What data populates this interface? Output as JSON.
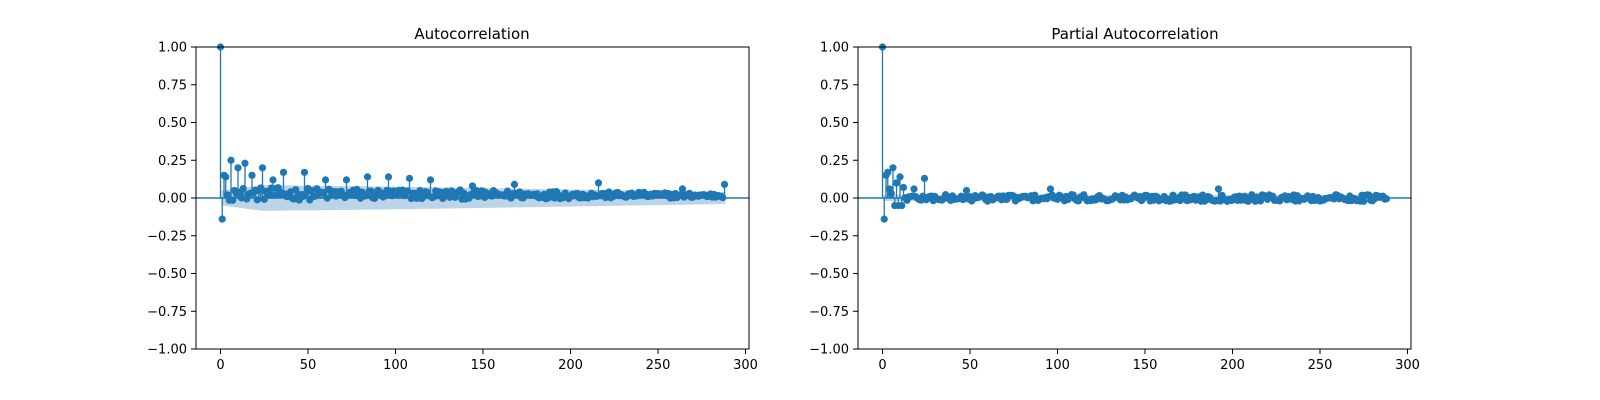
{
  "colors": {
    "stem": "#1f77b4",
    "band": "#a6c6e0",
    "axis": "#000000",
    "background": "#ffffff"
  },
  "chart_data": [
    {
      "type": "stem",
      "title": "Autocorrelation",
      "xlabel": "",
      "ylabel": "",
      "xlim": [
        -14,
        302
      ],
      "ylim": [
        -1.0,
        1.0
      ],
      "xticks": [
        "0",
        "50",
        "100",
        "150",
        "200",
        "250",
        "300"
      ],
      "yticks": [
        "−1.00",
        "−0.75",
        "−0.50",
        "−0.25",
        "0.00",
        "0.25",
        "0.50",
        "0.75",
        "1.00"
      ],
      "grid": false,
      "legend": "none",
      "lag_range": [
        0,
        288
      ],
      "highlighted_values": [
        {
          "lag": 0,
          "value": 1.0
        },
        {
          "lag": 1,
          "value": -0.14
        },
        {
          "lag": 2,
          "value": 0.15
        },
        {
          "lag": 3,
          "value": 0.14
        },
        {
          "lag": 4,
          "value": 0.02
        },
        {
          "lag": 6,
          "value": 0.25
        },
        {
          "lag": 8,
          "value": 0.05
        },
        {
          "lag": 10,
          "value": 0.2
        },
        {
          "lag": 12,
          "value": 0.0
        },
        {
          "lag": 14,
          "value": 0.23
        },
        {
          "lag": 18,
          "value": 0.15
        },
        {
          "lag": 24,
          "value": 0.2
        },
        {
          "lag": 30,
          "value": 0.12
        },
        {
          "lag": 36,
          "value": 0.17
        },
        {
          "lag": 48,
          "value": 0.17
        },
        {
          "lag": 60,
          "value": 0.12
        },
        {
          "lag": 72,
          "value": 0.12
        },
        {
          "lag": 84,
          "value": 0.14
        },
        {
          "lag": 96,
          "value": 0.14
        },
        {
          "lag": 108,
          "value": 0.13
        },
        {
          "lag": 120,
          "value": 0.12
        },
        {
          "lag": 144,
          "value": 0.08
        },
        {
          "lag": 168,
          "value": 0.09
        },
        {
          "lag": 216,
          "value": 0.1
        },
        {
          "lag": 288,
          "value": 0.09
        }
      ],
      "confidence_band_upper": [
        {
          "lag": 1,
          "value": 0.05
        },
        {
          "lag": 24,
          "value": 0.085
        },
        {
          "lag": 100,
          "value": 0.075
        },
        {
          "lag": 288,
          "value": 0.04
        }
      ]
    },
    {
      "type": "stem",
      "title": "Partial Autocorrelation",
      "xlabel": "",
      "ylabel": "",
      "xlim": [
        -14,
        302
      ],
      "ylim": [
        -1.0,
        1.0
      ],
      "xticks": [
        "0",
        "50",
        "100",
        "150",
        "200",
        "250",
        "300"
      ],
      "yticks": [
        "−1.00",
        "−0.75",
        "−0.50",
        "−0.25",
        "0.00",
        "0.25",
        "0.50",
        "0.75",
        "1.00"
      ],
      "grid": false,
      "legend": "none",
      "lag_range": [
        0,
        288
      ],
      "highlighted_values": [
        {
          "lag": 0,
          "value": 1.0
        },
        {
          "lag": 1,
          "value": -0.14
        },
        {
          "lag": 2,
          "value": 0.15
        },
        {
          "lag": 3,
          "value": 0.17
        },
        {
          "lag": 4,
          "value": 0.06
        },
        {
          "lag": 5,
          "value": 0.03
        },
        {
          "lag": 6,
          "value": 0.2
        },
        {
          "lag": 7,
          "value": -0.05
        },
        {
          "lag": 8,
          "value": 0.1
        },
        {
          "lag": 9,
          "value": -0.05
        },
        {
          "lag": 10,
          "value": 0.14
        },
        {
          "lag": 11,
          "value": -0.05
        },
        {
          "lag": 12,
          "value": 0.07
        },
        {
          "lag": 18,
          "value": 0.06
        },
        {
          "lag": 24,
          "value": 0.13
        },
        {
          "lag": 48,
          "value": 0.05
        },
        {
          "lag": 96,
          "value": 0.06
        },
        {
          "lag": 192,
          "value": 0.06
        }
      ],
      "confidence_band_upper": [
        {
          "lag": 1,
          "value": 0.02
        },
        {
          "lag": 288,
          "value": 0.02
        }
      ]
    }
  ]
}
